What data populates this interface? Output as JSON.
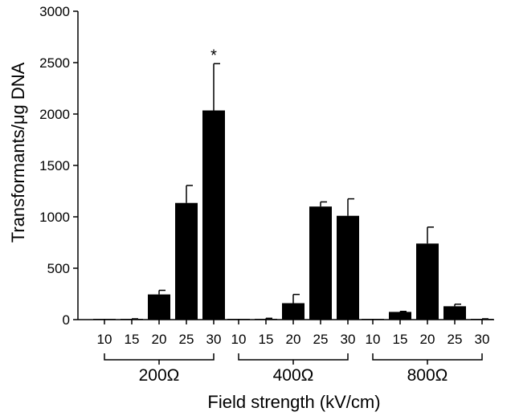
{
  "chart_data": {
    "type": "bar",
    "title": "",
    "xlabel": "Field strength (kV/cm)",
    "ylabel": "Transformants/μg DNA",
    "ylim": [
      0,
      3000
    ],
    "yticks": [
      0,
      500,
      1000,
      1500,
      2000,
      2500,
      3000
    ],
    "grid": false,
    "legend": "none",
    "color": "#000000",
    "groups": [
      {
        "label": "200Ω",
        "bars": [
          {
            "category": "10",
            "value": 0,
            "error": 0
          },
          {
            "category": "15",
            "value": 5,
            "error": 3
          },
          {
            "category": "20",
            "value": 245,
            "error": 40
          },
          {
            "category": "25",
            "value": 1135,
            "error": 170
          },
          {
            "category": "30",
            "value": 2035,
            "error": 455,
            "annotation": "*"
          }
        ]
      },
      {
        "label": "400Ω",
        "bars": [
          {
            "category": "10",
            "value": 0,
            "error": 0
          },
          {
            "category": "15",
            "value": 8,
            "error": 5
          },
          {
            "category": "20",
            "value": 160,
            "error": 85
          },
          {
            "category": "25",
            "value": 1100,
            "error": 45
          },
          {
            "category": "30",
            "value": 1010,
            "error": 165
          }
        ]
      },
      {
        "label": "800Ω",
        "bars": [
          {
            "category": "10",
            "value": 0,
            "error": 0
          },
          {
            "category": "15",
            "value": 75,
            "error": 5
          },
          {
            "category": "20",
            "value": 740,
            "error": 160
          },
          {
            "category": "25",
            "value": 130,
            "error": 20
          },
          {
            "category": "30",
            "value": 5,
            "error": 3
          }
        ]
      }
    ]
  }
}
